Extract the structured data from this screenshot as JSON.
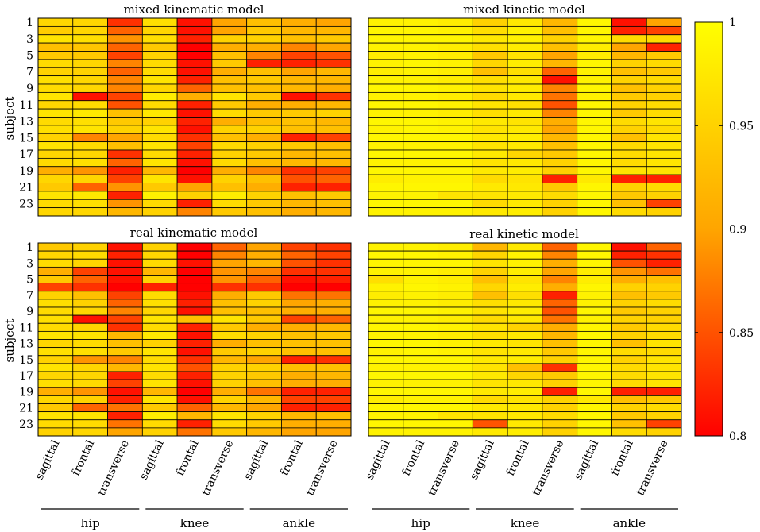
{
  "chart_data": {
    "type": "heatmap",
    "color_scale": {
      "min": 0.8,
      "max": 1,
      "low_color": "#ff0000",
      "mid_color": "#ffa500",
      "high_color": "#ffff00",
      "ticks": [
        "1",
        "0.95",
        "0.9",
        "0.85",
        "0.8"
      ]
    },
    "y_label": "subject",
    "y_tick_labels": [
      "1",
      "3",
      "5",
      "7",
      "9",
      "11",
      "13",
      "15",
      "17",
      "19",
      "21",
      "23"
    ],
    "columns": [
      "sagittal",
      "frontal",
      "transverse",
      "sagittal",
      "frontal",
      "transverse",
      "sagittal",
      "frontal",
      "transverse"
    ],
    "groups": [
      "hip",
      "knee",
      "ankle"
    ],
    "panels": [
      {
        "title": "mixed kinematic model",
        "values": [
          [
            0.955,
            0.955,
            0.83,
            0.965,
            0.81,
            0.9,
            0.93,
            0.91,
            0.9
          ],
          [
            0.945,
            0.955,
            0.86,
            0.955,
            0.81,
            0.9,
            0.94,
            0.92,
            0.92
          ],
          [
            0.97,
            0.965,
            0.89,
            0.965,
            0.82,
            0.95,
            0.95,
            0.93,
            0.94
          ],
          [
            0.93,
            0.935,
            0.86,
            0.94,
            0.8,
            0.91,
            0.91,
            0.88,
            0.9
          ],
          [
            0.94,
            0.94,
            0.84,
            0.95,
            0.8,
            0.93,
            0.88,
            0.84,
            0.85
          ],
          [
            0.96,
            0.955,
            0.88,
            0.96,
            0.81,
            0.94,
            0.82,
            0.82,
            0.83
          ],
          [
            0.95,
            0.95,
            0.86,
            0.96,
            0.81,
            0.91,
            0.93,
            0.9,
            0.92
          ],
          [
            0.965,
            0.955,
            0.88,
            0.97,
            0.82,
            0.93,
            0.94,
            0.92,
            0.92
          ],
          [
            0.96,
            0.955,
            0.88,
            0.955,
            0.86,
            0.93,
            0.93,
            0.92,
            0.91
          ],
          [
            0.97,
            0.81,
            0.84,
            0.98,
            0.91,
            0.97,
            0.94,
            0.81,
            0.83
          ],
          [
            0.955,
            0.96,
            0.85,
            0.96,
            0.82,
            0.94,
            0.91,
            0.91,
            0.92
          ],
          [
            0.97,
            0.975,
            0.93,
            0.975,
            0.81,
            0.96,
            0.94,
            0.94,
            0.95
          ],
          [
            0.96,
            0.965,
            0.94,
            0.95,
            0.82,
            0.91,
            0.93,
            0.93,
            0.92
          ],
          [
            0.965,
            0.97,
            0.95,
            0.97,
            0.81,
            0.95,
            0.95,
            0.93,
            0.93
          ],
          [
            0.95,
            0.88,
            0.9,
            0.96,
            0.83,
            0.93,
            0.91,
            0.82,
            0.84
          ],
          [
            0.97,
            0.96,
            0.93,
            0.97,
            0.84,
            0.96,
            0.95,
            0.94,
            0.93
          ],
          [
            0.955,
            0.955,
            0.83,
            0.96,
            0.82,
            0.95,
            0.94,
            0.92,
            0.93
          ],
          [
            0.96,
            0.965,
            0.86,
            0.97,
            0.81,
            0.96,
            0.93,
            0.92,
            0.92
          ],
          [
            0.91,
            0.89,
            0.82,
            0.92,
            0.8,
            0.91,
            0.88,
            0.83,
            0.84
          ],
          [
            0.955,
            0.955,
            0.84,
            0.97,
            0.81,
            0.95,
            0.93,
            0.85,
            0.86
          ],
          [
            0.94,
            0.86,
            0.89,
            0.94,
            0.9,
            0.93,
            0.91,
            0.82,
            0.82
          ],
          [
            0.97,
            0.975,
            0.82,
            0.985,
            0.95,
            0.98,
            0.95,
            0.93,
            0.94
          ],
          [
            0.96,
            0.965,
            0.89,
            0.96,
            0.82,
            0.96,
            0.94,
            0.92,
            0.93
          ],
          [
            0.955,
            0.955,
            0.92,
            0.95,
            0.88,
            0.94,
            0.93,
            0.91,
            0.92
          ]
        ]
      },
      {
        "title": "mixed kinetic model",
        "values": [
          [
            0.985,
            0.985,
            0.98,
            0.95,
            0.975,
            0.92,
            0.99,
            0.81,
            0.9
          ],
          [
            0.99,
            0.99,
            0.985,
            0.965,
            0.985,
            0.93,
            0.99,
            0.82,
            0.84
          ],
          [
            0.99,
            0.99,
            0.99,
            0.975,
            0.985,
            0.95,
            0.99,
            0.96,
            0.96
          ],
          [
            0.985,
            0.985,
            0.98,
            0.965,
            0.98,
            0.93,
            0.98,
            0.9,
            0.82
          ],
          [
            0.98,
            0.985,
            0.98,
            0.94,
            0.97,
            0.9,
            0.98,
            0.92,
            0.94
          ],
          [
            0.985,
            0.99,
            0.985,
            0.955,
            0.98,
            0.92,
            0.99,
            0.95,
            0.96
          ],
          [
            0.98,
            0.985,
            0.98,
            0.93,
            0.965,
            0.86,
            0.985,
            0.93,
            0.94
          ],
          [
            0.985,
            0.985,
            0.98,
            0.965,
            0.975,
            0.81,
            0.985,
            0.95,
            0.96
          ],
          [
            0.99,
            0.99,
            0.985,
            0.97,
            0.98,
            0.88,
            0.99,
            0.93,
            0.95
          ],
          [
            0.985,
            0.985,
            0.98,
            0.96,
            0.975,
            0.87,
            0.985,
            0.94,
            0.95
          ],
          [
            0.99,
            0.99,
            0.985,
            0.97,
            0.965,
            0.85,
            0.99,
            0.95,
            0.96
          ],
          [
            0.985,
            0.985,
            0.98,
            0.965,
            0.975,
            0.88,
            0.99,
            0.94,
            0.96
          ],
          [
            0.99,
            0.99,
            0.985,
            0.975,
            0.97,
            0.91,
            0.99,
            0.96,
            0.97
          ],
          [
            0.985,
            0.99,
            0.985,
            0.97,
            0.975,
            0.9,
            0.99,
            0.95,
            0.96
          ],
          [
            0.99,
            0.99,
            0.99,
            0.975,
            0.98,
            0.92,
            0.99,
            0.93,
            0.97
          ],
          [
            0.985,
            0.985,
            0.985,
            0.97,
            0.975,
            0.93,
            0.99,
            0.96,
            0.97
          ],
          [
            0.99,
            0.99,
            0.99,
            0.975,
            0.955,
            0.94,
            0.99,
            0.96,
            0.97
          ],
          [
            0.985,
            0.985,
            0.985,
            0.97,
            0.975,
            0.95,
            0.99,
            0.96,
            0.97
          ],
          [
            0.99,
            0.99,
            0.99,
            0.975,
            0.98,
            0.95,
            0.99,
            0.97,
            0.97
          ],
          [
            0.98,
            0.985,
            0.985,
            0.96,
            0.97,
            0.82,
            0.975,
            0.82,
            0.82
          ],
          [
            0.99,
            0.99,
            0.99,
            0.975,
            0.975,
            0.94,
            0.99,
            0.95,
            0.96
          ],
          [
            0.985,
            0.985,
            0.97,
            0.97,
            0.975,
            0.96,
            0.99,
            0.94,
            0.95
          ],
          [
            0.99,
            0.99,
            0.99,
            0.96,
            0.975,
            0.95,
            0.99,
            0.93,
            0.84
          ],
          [
            0.985,
            0.985,
            0.985,
            0.975,
            0.98,
            0.95,
            0.99,
            0.96,
            0.95
          ]
        ]
      },
      {
        "title": "real kinematic model",
        "values": [
          [
            0.94,
            0.95,
            0.81,
            0.95,
            0.8,
            0.86,
            0.9,
            0.84,
            0.83
          ],
          [
            0.955,
            0.96,
            0.82,
            0.955,
            0.8,
            0.88,
            0.91,
            0.86,
            0.84
          ],
          [
            0.96,
            0.955,
            0.81,
            0.96,
            0.81,
            0.9,
            0.92,
            0.85,
            0.83
          ],
          [
            0.91,
            0.84,
            0.81,
            0.92,
            0.8,
            0.89,
            0.88,
            0.83,
            0.83
          ],
          [
            0.94,
            0.86,
            0.81,
            0.95,
            0.8,
            0.89,
            0.86,
            0.81,
            0.82
          ],
          [
            0.84,
            0.83,
            0.8,
            0.82,
            0.8,
            0.83,
            0.83,
            0.8,
            0.8
          ],
          [
            0.95,
            0.93,
            0.84,
            0.96,
            0.81,
            0.91,
            0.94,
            0.87,
            0.87
          ],
          [
            0.965,
            0.95,
            0.86,
            0.965,
            0.82,
            0.93,
            0.95,
            0.9,
            0.91
          ],
          [
            0.96,
            0.955,
            0.88,
            0.955,
            0.81,
            0.93,
            0.93,
            0.91,
            0.91
          ],
          [
            0.965,
            0.81,
            0.84,
            0.97,
            0.93,
            0.97,
            0.94,
            0.84,
            0.86
          ],
          [
            0.96,
            0.955,
            0.83,
            0.96,
            0.82,
            0.94,
            0.91,
            0.91,
            0.92
          ],
          [
            0.97,
            0.97,
            0.92,
            0.975,
            0.81,
            0.96,
            0.95,
            0.93,
            0.94
          ],
          [
            0.955,
            0.96,
            0.93,
            0.95,
            0.82,
            0.91,
            0.93,
            0.93,
            0.93
          ],
          [
            0.965,
            0.965,
            0.94,
            0.97,
            0.81,
            0.94,
            0.95,
            0.93,
            0.93
          ],
          [
            0.95,
            0.89,
            0.88,
            0.96,
            0.83,
            0.92,
            0.9,
            0.82,
            0.83
          ],
          [
            0.97,
            0.955,
            0.92,
            0.97,
            0.85,
            0.95,
            0.95,
            0.93,
            0.93
          ],
          [
            0.955,
            0.955,
            0.82,
            0.96,
            0.82,
            0.95,
            0.94,
            0.91,
            0.92
          ],
          [
            0.965,
            0.96,
            0.84,
            0.97,
            0.81,
            0.95,
            0.93,
            0.91,
            0.91
          ],
          [
            0.91,
            0.89,
            0.81,
            0.92,
            0.8,
            0.91,
            0.87,
            0.82,
            0.82
          ],
          [
            0.955,
            0.95,
            0.82,
            0.97,
            0.81,
            0.95,
            0.92,
            0.84,
            0.84
          ],
          [
            0.94,
            0.86,
            0.87,
            0.94,
            0.86,
            0.92,
            0.9,
            0.82,
            0.82
          ],
          [
            0.97,
            0.97,
            0.82,
            0.98,
            0.92,
            0.97,
            0.95,
            0.92,
            0.93
          ],
          [
            0.96,
            0.96,
            0.87,
            0.96,
            0.82,
            0.96,
            0.94,
            0.91,
            0.91
          ],
          [
            0.95,
            0.955,
            0.9,
            0.95,
            0.87,
            0.94,
            0.92,
            0.9,
            0.9
          ]
        ]
      },
      {
        "title": "real kinetic model",
        "values": [
          [
            0.985,
            0.985,
            0.98,
            0.92,
            0.975,
            0.86,
            0.99,
            0.81,
            0.86
          ],
          [
            0.99,
            0.99,
            0.985,
            0.955,
            0.985,
            0.88,
            0.99,
            0.82,
            0.83
          ],
          [
            0.99,
            0.99,
            0.99,
            0.97,
            0.985,
            0.91,
            0.99,
            0.85,
            0.82
          ],
          [
            0.985,
            0.985,
            0.98,
            0.95,
            0.98,
            0.9,
            0.98,
            0.89,
            0.87
          ],
          [
            0.965,
            0.985,
            0.98,
            0.93,
            0.97,
            0.88,
            0.98,
            0.91,
            0.93
          ],
          [
            0.985,
            0.99,
            0.985,
            0.955,
            0.98,
            0.91,
            0.99,
            0.95,
            0.95
          ],
          [
            0.98,
            0.985,
            0.98,
            0.93,
            0.965,
            0.82,
            0.985,
            0.93,
            0.94
          ],
          [
            0.985,
            0.985,
            0.98,
            0.965,
            0.975,
            0.86,
            0.985,
            0.95,
            0.96
          ],
          [
            0.99,
            0.99,
            0.985,
            0.97,
            0.98,
            0.85,
            0.99,
            0.94,
            0.95
          ],
          [
            0.985,
            0.985,
            0.98,
            0.96,
            0.975,
            0.87,
            0.985,
            0.95,
            0.95
          ],
          [
            0.99,
            0.99,
            0.985,
            0.97,
            0.95,
            0.91,
            0.99,
            0.94,
            0.96
          ],
          [
            0.985,
            0.985,
            0.98,
            0.965,
            0.975,
            0.92,
            0.99,
            0.95,
            0.96
          ],
          [
            0.99,
            0.99,
            0.985,
            0.975,
            0.97,
            0.93,
            0.99,
            0.93,
            0.97
          ],
          [
            0.985,
            0.99,
            0.985,
            0.97,
            0.975,
            0.94,
            0.99,
            0.96,
            0.96
          ],
          [
            0.99,
            0.99,
            0.99,
            0.975,
            0.98,
            0.95,
            0.99,
            0.95,
            0.97
          ],
          [
            0.985,
            0.985,
            0.985,
            0.97,
            0.93,
            0.83,
            0.99,
            0.96,
            0.97
          ],
          [
            0.99,
            0.99,
            0.99,
            0.975,
            0.955,
            0.94,
            0.99,
            0.96,
            0.97
          ],
          [
            0.985,
            0.985,
            0.985,
            0.97,
            0.975,
            0.95,
            0.99,
            0.96,
            0.97
          ],
          [
            0.99,
            0.99,
            0.99,
            0.975,
            0.98,
            0.82,
            0.99,
            0.82,
            0.82
          ],
          [
            0.98,
            0.985,
            0.985,
            0.96,
            0.97,
            0.95,
            0.975,
            0.93,
            0.94
          ],
          [
            0.99,
            0.99,
            0.99,
            0.975,
            0.975,
            0.95,
            0.99,
            0.95,
            0.96
          ],
          [
            0.985,
            0.985,
            0.97,
            0.97,
            0.975,
            0.96,
            0.99,
            0.94,
            0.95
          ],
          [
            0.99,
            0.99,
            0.99,
            0.85,
            0.975,
            0.95,
            0.99,
            0.93,
            0.84
          ],
          [
            0.985,
            0.985,
            0.985,
            0.975,
            0.98,
            0.95,
            0.99,
            0.96,
            0.95
          ]
        ]
      }
    ]
  }
}
